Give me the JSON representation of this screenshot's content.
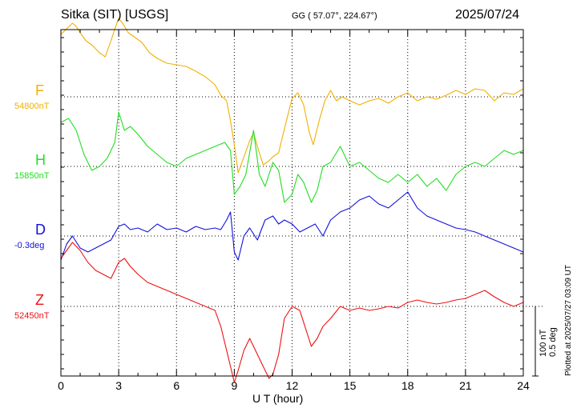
{
  "header": {
    "station": "Sitka (SIT)  [USGS]",
    "coords": "GG ( 57.07°, 224.67°)",
    "date": "2025/07/24"
  },
  "footer": {
    "plotted": "Plotted at 2025/07/27 03:09 UT"
  },
  "scale": {
    "line1": "100 nT",
    "line2": "0.5 deg"
  },
  "chart_data": {
    "type": "line",
    "xlabel": "U T (hour)",
    "xlim": [
      0,
      24
    ],
    "xticks": [
      "0",
      "3",
      "6",
      "9",
      "12",
      "15",
      "18",
      "21",
      "24"
    ],
    "grid": true,
    "series": [
      {
        "name": "F",
        "baseline": "54800nT",
        "color": "#f0b000",
        "x": [
          0,
          0.3,
          0.6,
          0.8,
          1.0,
          1.3,
          1.6,
          2.0,
          2.3,
          2.6,
          2.8,
          3.0,
          3.2,
          3.5,
          3.8,
          4.2,
          4.6,
          5.0,
          5.5,
          6.0,
          6.5,
          7.0,
          7.5,
          8.0,
          8.3,
          8.6,
          8.8,
          9.0,
          9.2,
          9.5,
          9.8,
          10.0,
          10.3,
          10.5,
          10.8,
          11.0,
          11.3,
          11.6,
          12.0,
          12.3,
          12.6,
          12.9,
          13.1,
          13.4,
          13.7,
          14.0,
          14.3,
          14.6,
          15.0,
          15.5,
          16.0,
          16.5,
          17.0,
          17.5,
          18.0,
          18.5,
          19.0,
          19.5,
          20.0,
          20.5,
          21.0,
          21.5,
          22.0,
          22.5,
          23.0,
          23.5,
          24.0
        ],
        "y": [
          78,
          85,
          92,
          88,
          80,
          70,
          65,
          55,
          50,
          70,
          85,
          98,
          92,
          80,
          75,
          68,
          55,
          48,
          42,
          40,
          38,
          32,
          25,
          15,
          2,
          -5,
          -30,
          -60,
          -95,
          -75,
          -55,
          -45,
          -70,
          -85,
          -80,
          -75,
          -70,
          -40,
          -2,
          5,
          -10,
          -45,
          -60,
          -30,
          -5,
          8,
          -5,
          0,
          -5,
          -10,
          -5,
          -2,
          -8,
          0,
          5,
          -5,
          0,
          -3,
          2,
          8,
          3,
          10,
          8,
          -5,
          5,
          3,
          10
        ]
      },
      {
        "name": "H",
        "baseline": "15850nT",
        "color": "#22dd22",
        "x": [
          0,
          0.4,
          0.8,
          1.2,
          1.6,
          2.0,
          2.4,
          2.8,
          3.0,
          3.3,
          3.6,
          4.0,
          4.5,
          5.0,
          5.5,
          6.0,
          6.5,
          7.0,
          7.5,
          8.0,
          8.5,
          8.8,
          9.0,
          9.3,
          9.6,
          10.0,
          10.3,
          10.6,
          11.0,
          11.3,
          11.6,
          12.0,
          12.3,
          12.6,
          13.0,
          13.3,
          13.6,
          14.0,
          14.5,
          15.0,
          15.5,
          16.0,
          16.5,
          17.0,
          17.5,
          18.0,
          18.5,
          19.0,
          19.5,
          20.0,
          20.5,
          21.0,
          21.5,
          22.0,
          22.5,
          23.0,
          23.5,
          24.0
        ],
        "y": [
          55,
          60,
          45,
          15,
          -5,
          0,
          10,
          30,
          68,
          45,
          50,
          40,
          25,
          15,
          5,
          0,
          10,
          15,
          20,
          25,
          30,
          20,
          -35,
          -25,
          -10,
          45,
          -10,
          -25,
          5,
          -5,
          -45,
          -35,
          -10,
          -20,
          -45,
          -30,
          0,
          5,
          25,
          0,
          5,
          -5,
          -15,
          -20,
          -10,
          -20,
          -10,
          -25,
          -15,
          -30,
          -10,
          0,
          5,
          0,
          10,
          20,
          15,
          20
        ]
      },
      {
        "name": "D",
        "baseline": "-0.3deg",
        "color": "#1111dd",
        "x": [
          0,
          0.3,
          0.6,
          1.0,
          1.4,
          1.8,
          2.2,
          2.6,
          3.0,
          3.3,
          3.6,
          4.0,
          4.5,
          5.0,
          5.5,
          6.0,
          6.5,
          7.0,
          7.5,
          8.0,
          8.3,
          8.6,
          8.8,
          9.0,
          9.2,
          9.5,
          9.8,
          10.2,
          10.6,
          11.0,
          11.3,
          11.6,
          12.0,
          12.4,
          12.8,
          13.2,
          13.6,
          14.0,
          14.5,
          15.0,
          15.5,
          16.0,
          16.5,
          17.0,
          17.5,
          18.0,
          18.5,
          19.0,
          19.5,
          20.0,
          20.5,
          21.0,
          21.5,
          22.0,
          22.5,
          23.0,
          23.5,
          24.0
        ],
        "y": [
          -30,
          -10,
          0,
          -15,
          -20,
          -15,
          -10,
          -5,
          12,
          15,
          8,
          10,
          5,
          15,
          8,
          10,
          5,
          12,
          8,
          10,
          8,
          20,
          30,
          -20,
          -30,
          0,
          10,
          -5,
          20,
          25,
          15,
          20,
          15,
          5,
          10,
          15,
          0,
          20,
          30,
          35,
          45,
          50,
          40,
          35,
          45,
          55,
          35,
          25,
          20,
          15,
          10,
          8,
          5,
          0,
          -5,
          -10,
          -15,
          -20
        ]
      },
      {
        "name": "Z",
        "baseline": "52450nT",
        "color": "#ee1111",
        "x": [
          0,
          0.3,
          0.6,
          1.0,
          1.4,
          1.8,
          2.2,
          2.6,
          3.0,
          3.3,
          3.6,
          4.0,
          4.5,
          5.0,
          5.5,
          6.0,
          6.5,
          7.0,
          7.5,
          8.0,
          8.3,
          8.6,
          8.8,
          9.0,
          9.2,
          9.5,
          9.8,
          10.2,
          10.5,
          10.8,
          11.0,
          11.3,
          11.6,
          12.0,
          12.4,
          12.8,
          13.0,
          13.3,
          13.6,
          14.0,
          14.5,
          15.0,
          15.5,
          16.0,
          16.5,
          17.0,
          17.5,
          18.0,
          18.5,
          19.0,
          19.5,
          20.0,
          20.5,
          21.0,
          21.5,
          22.0,
          22.5,
          23.0,
          23.5,
          24.0
        ],
        "y": [
          60,
          70,
          80,
          70,
          55,
          45,
          40,
          35,
          55,
          60,
          50,
          40,
          30,
          25,
          20,
          15,
          10,
          5,
          0,
          -5,
          -25,
          -55,
          -75,
          -95,
          -80,
          -55,
          -40,
          -60,
          -75,
          -90,
          -85,
          -60,
          -15,
          0,
          -5,
          -35,
          -50,
          -40,
          -25,
          -15,
          0,
          -5,
          -2,
          -5,
          -3,
          0,
          -2,
          5,
          8,
          5,
          3,
          5,
          8,
          10,
          15,
          20,
          12,
          5,
          0,
          5
        ]
      }
    ]
  }
}
